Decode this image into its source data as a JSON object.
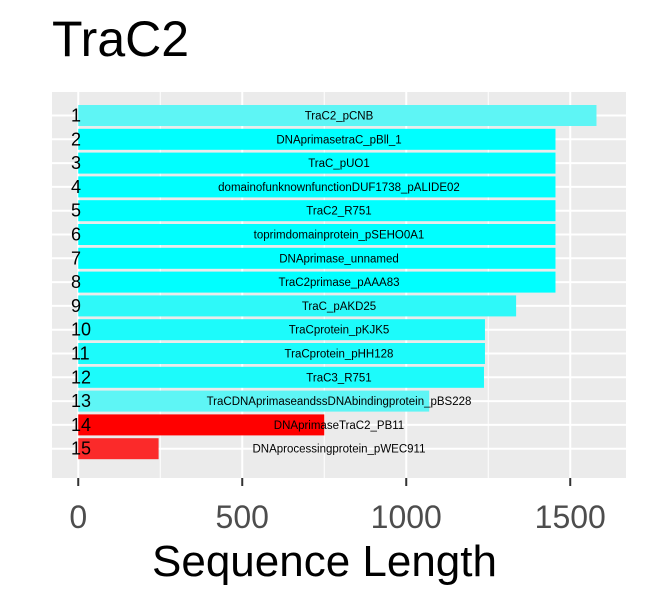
{
  "title": "TraC2",
  "chart_data": {
    "type": "bar",
    "orientation": "horizontal",
    "title": "TraC2",
    "xlabel": "Sequence Length",
    "ylabel": "",
    "xlim": [
      -80,
      1670
    ],
    "xticks": [
      0,
      500,
      1000,
      1500
    ],
    "grid": true,
    "legend": "none",
    "categories": [
      "1",
      "2",
      "3",
      "4",
      "5",
      "6",
      "7",
      "8",
      "9",
      "10",
      "11",
      "12",
      "13",
      "14",
      "15"
    ],
    "bar_labels": [
      "TraC2_pCNB",
      "DNAprimasetraC_pBll_1",
      "TraC_pUO1",
      "domainofunknownfunctionDUF1738_pALIDE02",
      "TraC2_R751",
      "toprimdomainprotein_pSEHO0A1",
      "DNAprimase_unnamed",
      "TraC2primase_pAAA83",
      "TraC_pAKD25",
      "TraCprotein_pKJK5",
      "TraCprotein_pHH128",
      "TraC3_R751",
      "TraCDNAprimaseandssDNAbindingprotein_pBS228",
      "DNAprimaseTraC2_PB11",
      "DNAprocessingprotein_pWEC911"
    ],
    "values": [
      1580,
      1455,
      1455,
      1455,
      1455,
      1455,
      1455,
      1455,
      1335,
      1240,
      1240,
      1237,
      1070,
      750,
      245
    ],
    "colors": [
      "#5ef5f5",
      "#00ffff",
      "#00ffff",
      "#00ffff",
      "#00ffff",
      "#00ffff",
      "#00ffff",
      "#00ffff",
      "#2ef9f9",
      "#1cfbfb",
      "#1cfbfb",
      "#1cfbfb",
      "#5ef5f5",
      "#ff0000",
      "#fb2a2a"
    ]
  }
}
